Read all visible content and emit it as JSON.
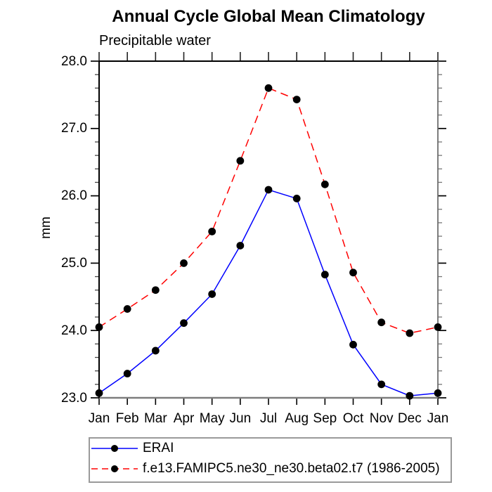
{
  "chart": {
    "title": "Annual Cycle Global Mean Climatology",
    "subtitle": "Precipitable water",
    "ylabel": "mm"
  },
  "legend": {
    "entries": [
      {
        "label": "ERAI",
        "color": "#0000ff",
        "style": "solid",
        "marker": "black-dot"
      },
      {
        "label": "f.e13.FAMIPC5.ne30_ne30.beta02.t7 (1986-2005)",
        "color": "#ff0000",
        "style": "dashed",
        "marker": "black-dot"
      }
    ]
  },
  "colors": {
    "erai_line": "#0000ff",
    "model_line": "#ff0000",
    "marker": "#000000",
    "frame_dark": "#000000",
    "frame_gray": "#7d7d7d",
    "legend_border": "#9a9a9a"
  },
  "chart_data": {
    "type": "line",
    "title": "Annual Cycle Global Mean Climatology",
    "subtitle": "Precipitable water",
    "xlabel": "",
    "ylabel": "mm",
    "categories": [
      "Jan",
      "Feb",
      "Mar",
      "Apr",
      "May",
      "Jun",
      "Jul",
      "Aug",
      "Sep",
      "Oct",
      "Nov",
      "Dec",
      "Jan"
    ],
    "ylim": [
      23.0,
      28.0
    ],
    "ytick_labels": [
      "23.0",
      "24.0",
      "25.0",
      "26.0",
      "27.0",
      "28.0"
    ],
    "yticks": [
      23.0,
      24.0,
      25.0,
      26.0,
      27.0,
      28.0
    ],
    "minor_tick_step": 0.2,
    "grid": false,
    "legend_position": "bottom",
    "series": [
      {
        "name": "ERAI",
        "color": "#0000ff",
        "line_style": "solid",
        "marker": "filled-circle",
        "values": [
          23.07,
          23.36,
          23.7,
          24.11,
          24.54,
          25.26,
          26.09,
          25.96,
          24.83,
          23.79,
          23.2,
          23.03,
          23.07
        ]
      },
      {
        "name": "f.e13.FAMIPC5.ne30_ne30.beta02.t7 (1986-2005)",
        "color": "#ff0000",
        "line_style": "dashed",
        "marker": "filled-circle",
        "values": [
          24.05,
          24.32,
          24.6,
          25.0,
          25.47,
          26.52,
          27.6,
          27.43,
          26.17,
          24.86,
          24.12,
          23.96,
          24.05
        ]
      }
    ]
  }
}
